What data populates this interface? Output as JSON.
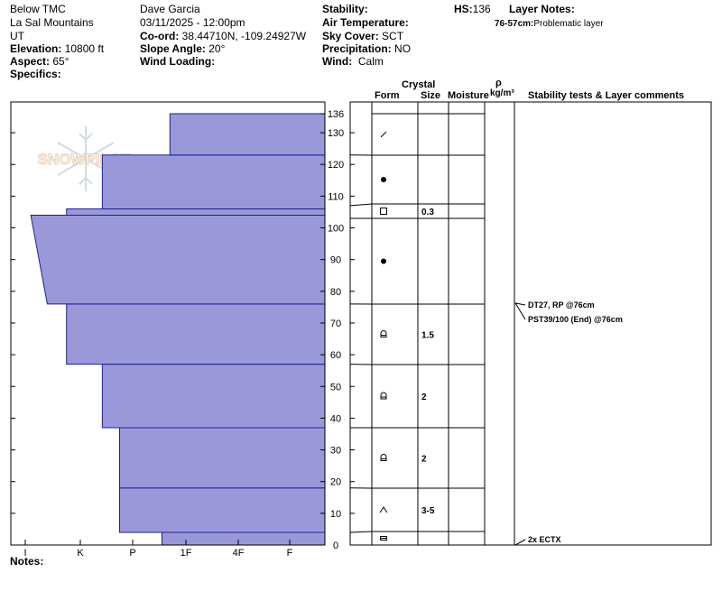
{
  "header": {
    "location": "Below TMC",
    "range": "La Sal Mountains",
    "state": "UT",
    "elevation_label": "Elevation:",
    "elevation_value": "10800 ft",
    "aspect_label": "Aspect:",
    "aspect_value": "65°",
    "specifics_label": "Specifics:",
    "observer": "Dave Garcia",
    "datetime": "03/11/2025 - 12:00pm",
    "coord_label": "Co-ord:",
    "coord_value": "38.44710N, -109.24927W",
    "slope_label": "Slope Angle:",
    "slope_value": "20°",
    "wind_loading_label": "Wind Loading:",
    "stability_label": "Stability:",
    "air_temp_label": "Air Temperature:",
    "sky_label": "Sky Cover:",
    "sky_value": "SCT",
    "precip_label": "Precipitation:",
    "precip_value": "NO",
    "wind_label": "Wind:",
    "wind_value": "Calm",
    "hs_label": "HS:",
    "hs_value": "136",
    "layer_notes_label": "Layer Notes:",
    "layer_note_range": "76-57cm:",
    "layer_note_text": "Problematic layer"
  },
  "columns": {
    "crystal": "Crystal",
    "form": "Form",
    "size": "Size",
    "moisture": "Moisture",
    "rho": "ρ",
    "density_unit": "kg/m³",
    "comments": "Stability tests & Layer comments"
  },
  "notes_label": "Notes:",
  "logo_text": "SNOWPILOT",
  "colors": {
    "hardness_fill": "#9999d9",
    "hardness_stroke": "#1f1f99"
  },
  "chart_data": {
    "type": "area",
    "x_label_ticks": [
      "I",
      "K",
      "P",
      "1F",
      "4F",
      "F"
    ],
    "y_ticks": [
      0,
      10,
      20,
      30,
      40,
      50,
      60,
      70,
      80,
      90,
      100,
      110,
      120,
      130,
      136
    ],
    "ylim": [
      0,
      136
    ],
    "height_unit": "cm",
    "hardness_profile": [
      {
        "bottom": 0,
        "top": 4,
        "hardness_bottom": "4F",
        "hardness_top": "4F",
        "hardness_level": 4.55
      },
      {
        "bottom": 4,
        "top": 18,
        "hardness_bottom": "1F",
        "hardness_top": "1F",
        "hardness_level": 3.75
      },
      {
        "bottom": 18,
        "top": 37,
        "hardness_bottom": "1F",
        "hardness_top": "1F",
        "hardness_level": 3.75
      },
      {
        "bottom": 37,
        "top": 57,
        "hardness_bottom": "1F+",
        "hardness_top": "1F+",
        "hardness_level": 3.42
      },
      {
        "bottom": 57,
        "top": 76,
        "hardness_bottom": "4F-",
        "hardness_top": "4F-",
        "hardness_level": 2.75
      },
      {
        "bottom": 76,
        "top": 104,
        "hardness_bottom": "P-",
        "hardness_top": "1F",
        "hardness_level_bottom": 2.4,
        "hardness_level_top": 2.1
      },
      {
        "bottom": 104,
        "top": 106,
        "hardness_bottom": "4F-",
        "hardness_top": "4F-",
        "hardness_level": 2.75
      },
      {
        "bottom": 106,
        "top": 123,
        "hardness_bottom": "1F+",
        "hardness_top": "1F+",
        "hardness_level": 3.42
      },
      {
        "bottom": 123,
        "top": 136,
        "hardness_bottom": "4F+",
        "hardness_top": "4F+",
        "hardness_level": 4.7
      }
    ],
    "layers": [
      {
        "bottom": 0,
        "top": 4,
        "form": "crust",
        "size": ""
      },
      {
        "bottom": 4,
        "top": 18,
        "form": "depth-hoar",
        "size": "3-5"
      },
      {
        "bottom": 18,
        "top": 37,
        "form": "rounding-facets",
        "size": "2"
      },
      {
        "bottom": 37,
        "top": 57,
        "form": "rounding-facets",
        "size": "2"
      },
      {
        "bottom": 57,
        "top": 76,
        "form": "rounding-facets",
        "size": "1.5"
      },
      {
        "bottom": 76,
        "top": 103,
        "form": "rounds",
        "size": ""
      },
      {
        "bottom": 103,
        "top": 107,
        "form": "facets",
        "size": "0.3"
      },
      {
        "bottom": 107,
        "top": 123,
        "form": "rounds",
        "size": ""
      },
      {
        "bottom": 123,
        "top": 136,
        "form": "decomposing",
        "size": ""
      }
    ],
    "stability_tests": [
      {
        "text": "DT27, RP @76cm",
        "depth": 76
      },
      {
        "text": "PST39/100 (End) @76cm",
        "depth": 76
      },
      {
        "text": "2x ECTX",
        "depth": 0
      }
    ]
  }
}
